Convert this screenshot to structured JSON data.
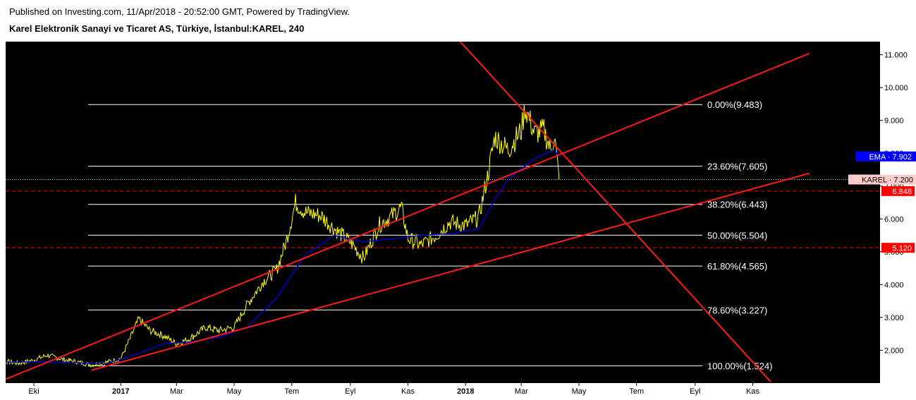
{
  "header": {
    "published": "Published on Investing.com, 11/Apr/2018 - 20:52:00 GMT, Powered by TradingView.",
    "subtitle": "Karel Elektronik Sanayi ve Ticaret AS, Türkiye, İstanbul:KAREL, 240"
  },
  "colors": {
    "background": "#000000",
    "price": "#ffff00",
    "ema": "#0000cc",
    "trendlines": "#ff1a1a",
    "fib_lines": "#ffffff",
    "ema_tag": "#0000ff",
    "level_tag": "#ff0000",
    "karel_tag": "#ffcccc"
  },
  "chart_data": {
    "type": "line",
    "ylim": [
      1.0,
      11.4
    ],
    "grid": false,
    "y_ticks": [
      "2.000",
      "3.000",
      "4.000",
      "5.000",
      "6.000",
      "7.000",
      "8.000",
      "9.000",
      "10.000",
      "11.000"
    ],
    "x_ticks": [
      {
        "label": "Eki",
        "date": "2016-10-01",
        "bold": false
      },
      {
        "label": "2017",
        "date": "2017-01-01",
        "bold": true
      },
      {
        "label": "Mar",
        "date": "2017-03-01",
        "bold": false
      },
      {
        "label": "May",
        "date": "2017-05-01",
        "bold": false
      },
      {
        "label": "Tem",
        "date": "2017-07-01",
        "bold": false
      },
      {
        "label": "Eyl",
        "date": "2017-09-01",
        "bold": false
      },
      {
        "label": "Kas",
        "date": "2017-11-01",
        "bold": false
      },
      {
        "label": "2018",
        "date": "2018-01-01",
        "bold": true
      },
      {
        "label": "Mar",
        "date": "2018-03-01",
        "bold": false
      },
      {
        "label": "May",
        "date": "2018-05-01",
        "bold": false
      },
      {
        "label": "Tem",
        "date": "2018-07-01",
        "bold": false
      },
      {
        "label": "Eyl",
        "date": "2018-09-01",
        "bold": false
      },
      {
        "label": "Kas",
        "date": "2018-11-01",
        "bold": false
      }
    ],
    "series": [
      {
        "name": "KAREL",
        "points": [
          [
            "2016-08-15",
            1.62
          ],
          [
            "2016-09-01",
            1.66
          ],
          [
            "2016-09-15",
            1.6
          ],
          [
            "2016-10-01",
            1.7
          ],
          [
            "2016-10-15",
            1.85
          ],
          [
            "2016-11-01",
            1.72
          ],
          [
            "2016-11-15",
            1.65
          ],
          [
            "2016-12-01",
            1.55
          ],
          [
            "2016-12-15",
            1.62
          ],
          [
            "2017-01-01",
            1.75
          ],
          [
            "2017-01-10",
            2.3
          ],
          [
            "2017-01-20",
            2.95
          ],
          [
            "2017-02-01",
            2.6
          ],
          [
            "2017-02-15",
            2.45
          ],
          [
            "2017-03-01",
            2.2
          ],
          [
            "2017-03-15",
            2.35
          ],
          [
            "2017-04-01",
            2.7
          ],
          [
            "2017-04-15",
            2.6
          ],
          [
            "2017-05-01",
            2.7
          ],
          [
            "2017-05-15",
            3.4
          ],
          [
            "2017-06-01",
            4.1
          ],
          [
            "2017-06-15",
            4.45
          ],
          [
            "2017-06-25",
            5.3
          ],
          [
            "2017-07-05",
            6.5
          ],
          [
            "2017-07-15",
            6.2
          ],
          [
            "2017-08-01",
            6.1
          ],
          [
            "2017-08-15",
            5.7
          ],
          [
            "2017-09-01",
            5.3
          ],
          [
            "2017-09-15",
            4.8
          ],
          [
            "2017-10-01",
            5.8
          ],
          [
            "2017-10-15",
            6.1
          ],
          [
            "2017-10-25",
            6.35
          ],
          [
            "2017-11-01",
            5.4
          ],
          [
            "2017-11-15",
            5.2
          ],
          [
            "2017-12-01",
            5.5
          ],
          [
            "2017-12-15",
            5.9
          ],
          [
            "2018-01-01",
            5.8
          ],
          [
            "2018-01-15",
            6.05
          ],
          [
            "2018-01-25",
            7.4
          ],
          [
            "2018-02-01",
            8.5
          ],
          [
            "2018-02-15",
            8.1
          ],
          [
            "2018-03-01",
            8.7
          ],
          [
            "2018-03-05",
            9.4
          ],
          [
            "2018-03-15",
            8.6
          ],
          [
            "2018-03-25",
            8.7
          ],
          [
            "2018-04-01",
            8.1
          ],
          [
            "2018-04-05",
            8.55
          ],
          [
            "2018-04-10",
            7.2
          ]
        ]
      },
      {
        "name": "EMA",
        "points": [
          [
            "2016-08-15",
            1.62
          ],
          [
            "2016-10-01",
            1.65
          ],
          [
            "2016-11-15",
            1.62
          ],
          [
            "2016-12-15",
            1.58
          ],
          [
            "2017-01-15",
            1.85
          ],
          [
            "2017-02-15",
            2.2
          ],
          [
            "2017-03-15",
            2.25
          ],
          [
            "2017-04-15",
            2.4
          ],
          [
            "2017-05-15",
            2.7
          ],
          [
            "2017-06-15",
            3.6
          ],
          [
            "2017-07-15",
            4.9
          ],
          [
            "2017-08-15",
            5.5
          ],
          [
            "2017-09-15",
            5.3
          ],
          [
            "2017-10-15",
            5.4
          ],
          [
            "2017-11-15",
            5.5
          ],
          [
            "2017-12-15",
            5.55
          ],
          [
            "2018-01-15",
            5.7
          ],
          [
            "2018-02-01",
            6.6
          ],
          [
            "2018-02-15",
            7.2
          ],
          [
            "2018-03-15",
            7.85
          ],
          [
            "2018-04-05",
            8.1
          ],
          [
            "2018-04-10",
            7.902
          ]
        ]
      }
    ],
    "fibonacci": [
      {
        "label": "0.00%(9.483)",
        "value": 9.483
      },
      {
        "label": "23.60%(7.605)",
        "value": 7.605
      },
      {
        "label": "38.20%(6.443)",
        "value": 6.443
      },
      {
        "label": "50.00%(5.504)",
        "value": 5.504
      },
      {
        "label": "61.80%(4.565)",
        "value": 4.565
      },
      {
        "label": "78.60%(3.227)",
        "value": 3.227
      },
      {
        "label": "100.00%(1.524)",
        "value": 1.524
      }
    ],
    "trendlines": [
      {
        "from": [
          "2016-08-15",
          0.92
        ],
        "to": [
          "2018-12-31",
          11.04
        ]
      },
      {
        "from": [
          "2016-12-01",
          1.39
        ],
        "to": [
          "2018-12-31",
          7.39
        ]
      },
      {
        "from": [
          "2017-12-01",
          12.2
        ],
        "to": [
          "2018-11-20",
          1.04
        ]
      }
    ],
    "horizontal_levels": [
      {
        "label": "6.848",
        "value": 6.848
      },
      {
        "label": "5.120",
        "value": 5.12
      }
    ],
    "tags": {
      "ema": {
        "label": "EMA",
        "value": "7.902"
      },
      "karel": {
        "label": "KAREL",
        "value": "7.200"
      }
    }
  }
}
